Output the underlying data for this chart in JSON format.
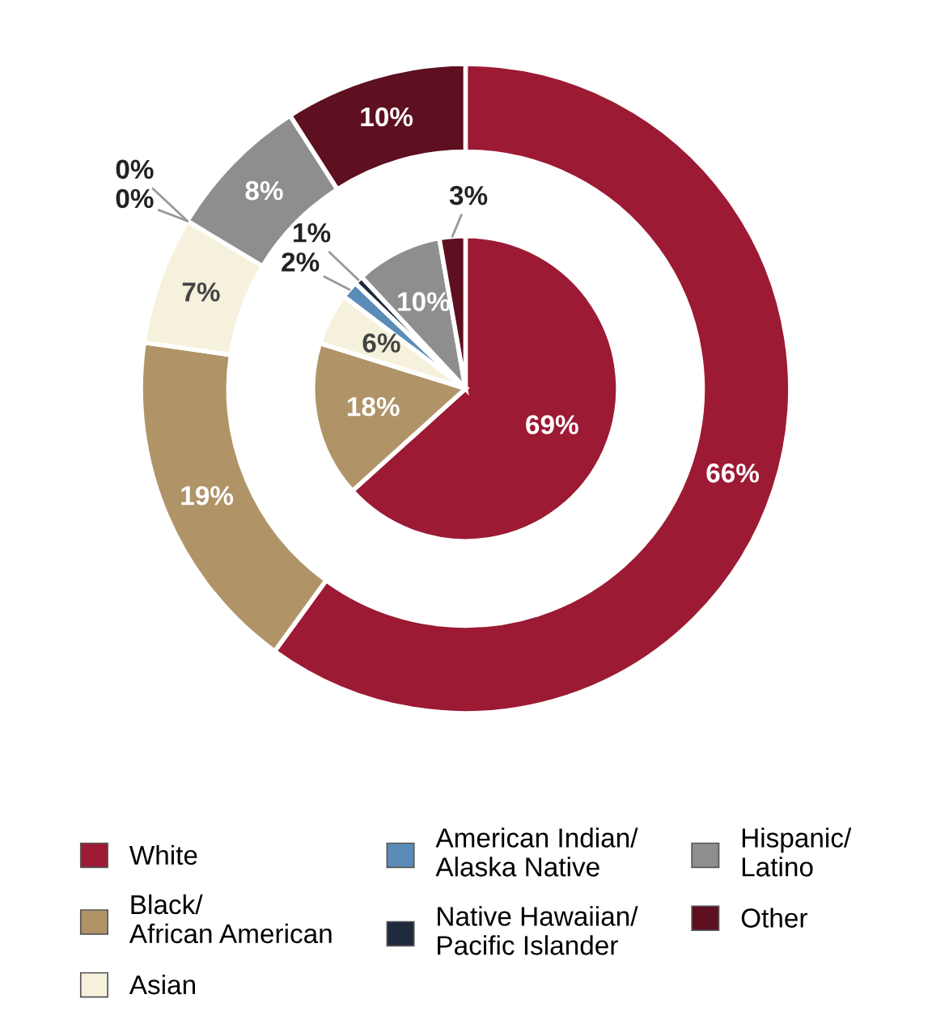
{
  "chart_data": {
    "type": "donut",
    "categories": [
      "White",
      "Black/\nAfrican American",
      "Asian",
      "American Indian/\nAlaska Native",
      "Native Hawaiian/\nPacific Islander",
      "Hispanic/\nLatino",
      "Other"
    ],
    "colors": [
      "#9c1a33",
      "#b09468",
      "#f6f1dc",
      "#5b8cb8",
      "#1f2a3c",
      "#8e8e8e",
      "#5e0f20"
    ],
    "series": [
      {
        "values": [
          66,
          19,
          7,
          0,
          0,
          8,
          10
        ],
        "value_labels": [
          "66%",
          "19%",
          "7%",
          "0%",
          "0%",
          "8%",
          "10%"
        ]
      },
      {
        "type": "pie",
        "values": [
          69,
          18,
          6,
          2,
          1,
          10,
          3
        ],
        "value_labels": [
          "69%",
          "18%",
          "6%",
          "2%",
          "1%",
          "10%",
          "3%"
        ]
      }
    ],
    "legend": "bottom"
  }
}
